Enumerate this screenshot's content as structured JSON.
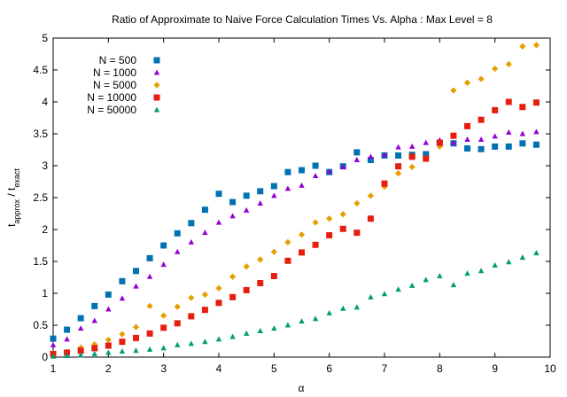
{
  "chart_data": {
    "type": "scatter",
    "title": "Ratio of Approximate to Naive Force Calculation Times Vs. Alpha : Max Level = 8",
    "xlabel": "α",
    "ylabel": {
      "t1": "t",
      "s1": "approx",
      "t2": " / t",
      "s2": "exact"
    },
    "xlim": [
      1,
      10
    ],
    "ylim": [
      0,
      5
    ],
    "xticks": [
      "1",
      "2",
      "3",
      "4",
      "5",
      "6",
      "7",
      "8",
      "9",
      "10"
    ],
    "yticks": [
      "0",
      "0.5",
      "1",
      "1.5",
      "2",
      "2.5",
      "3",
      "3.5",
      "4",
      "4.5",
      "5"
    ],
    "grid": false,
    "legend_position": "top-left",
    "x": [
      1,
      1.25,
      1.5,
      1.75,
      2,
      2.25,
      2.5,
      2.75,
      3,
      3.25,
      3.5,
      3.75,
      4,
      4.25,
      4.5,
      4.75,
      5,
      5.25,
      5.5,
      5.75,
      6,
      6.25,
      6.5,
      6.75,
      7,
      7.25,
      7.5,
      7.75,
      8,
      8.25,
      8.5,
      8.75,
      9,
      9.25,
      9.5,
      9.75
    ],
    "series": [
      {
        "name": "N = 500",
        "color": "#0072b2",
        "marker": "square",
        "values": [
          0.29,
          0.43,
          0.61,
          0.8,
          0.98,
          1.19,
          1.35,
          1.55,
          1.75,
          1.94,
          2.1,
          2.31,
          2.56,
          2.43,
          2.53,
          2.6,
          2.68,
          2.9,
          2.93,
          3.0,
          2.9,
          2.99,
          3.21,
          3.09,
          3.16,
          3.16,
          3.17,
          3.18,
          3.36,
          3.35,
          3.27,
          3.26,
          3.3,
          3.3,
          3.35,
          3.33
        ]
      },
      {
        "name": "N = 1000",
        "color": "#9400d3",
        "marker": "triangle",
        "values": [
          0.19,
          0.28,
          0.45,
          0.57,
          0.75,
          0.92,
          1.11,
          1.26,
          1.45,
          1.65,
          1.8,
          1.95,
          2.11,
          2.21,
          2.3,
          2.41,
          2.53,
          2.64,
          2.69,
          2.84,
          2.91,
          2.98,
          3.09,
          3.14,
          3.17,
          3.29,
          3.3,
          3.36,
          3.4,
          3.36,
          3.41,
          3.41,
          3.46,
          3.52,
          3.5,
          3.53
        ]
      },
      {
        "name": "N = 5000",
        "color": "#e69f00",
        "marker": "diamond",
        "values": [
          0.06,
          0.08,
          0.15,
          0.2,
          0.27,
          0.36,
          0.47,
          0.8,
          0.65,
          0.79,
          0.93,
          0.98,
          1.08,
          1.26,
          1.42,
          1.53,
          1.65,
          1.8,
          1.92,
          2.11,
          2.17,
          2.24,
          2.41,
          2.53,
          2.67,
          2.88,
          2.98,
          3.12,
          3.3,
          4.18,
          4.3,
          4.36,
          4.52,
          4.59,
          4.87,
          4.89
        ]
      },
      {
        "name": "N = 10000",
        "color": "#e51e10",
        "marker": "square",
        "values": [
          0.05,
          0.07,
          0.1,
          0.14,
          0.18,
          0.24,
          0.3,
          0.37,
          0.46,
          0.53,
          0.64,
          0.74,
          0.85,
          0.94,
          1.05,
          1.16,
          1.27,
          1.51,
          1.64,
          1.76,
          1.91,
          2.01,
          1.95,
          2.17,
          2.72,
          2.99,
          3.14,
          3.11,
          3.36,
          3.47,
          3.62,
          3.72,
          3.87,
          4.0,
          3.92,
          3.99
        ]
      },
      {
        "name": "N = 50000",
        "color": "#009e73",
        "marker": "triangle",
        "values": [
          0.01,
          0.02,
          0.03,
          0.05,
          0.07,
          0.09,
          0.1,
          0.12,
          0.14,
          0.19,
          0.21,
          0.24,
          0.28,
          0.32,
          0.37,
          0.41,
          0.45,
          0.5,
          0.56,
          0.6,
          0.69,
          0.76,
          0.78,
          0.94,
          0.99,
          1.06,
          1.12,
          1.21,
          1.27,
          1.13,
          1.31,
          1.35,
          1.44,
          1.49,
          1.56,
          1.63
        ]
      }
    ]
  }
}
